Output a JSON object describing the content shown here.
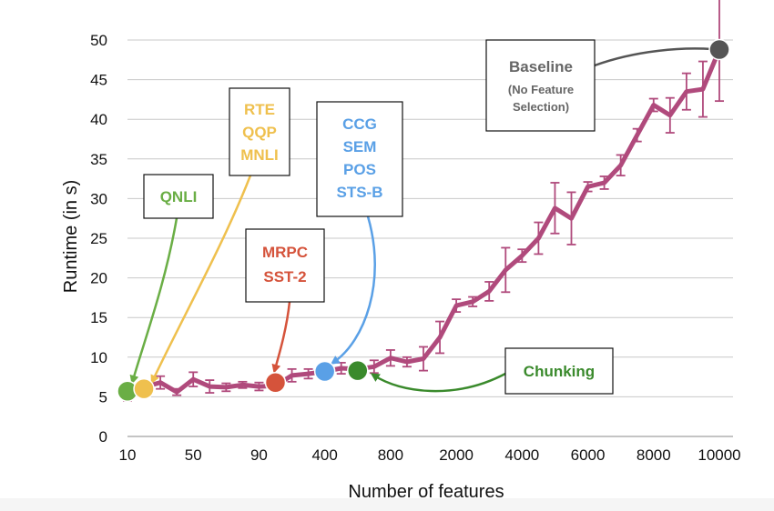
{
  "chart_data": {
    "type": "line",
    "xlabel": "Number of features",
    "ylabel": "Runtime (in s)",
    "ylim": [
      0,
      50
    ],
    "yticks": [
      0,
      5,
      10,
      15,
      20,
      25,
      30,
      35,
      40,
      45,
      50
    ],
    "xtick_labels": [
      "10",
      "50",
      "90",
      "400",
      "800",
      "2000",
      "4000",
      "6000",
      "8000",
      "10000"
    ],
    "grid": true,
    "series": [
      {
        "color": "#b04a7c",
        "x": [
          "10",
          "20",
          "30",
          "40",
          "50",
          "60",
          "70",
          "80",
          "90",
          "100",
          "200",
          "300",
          "400",
          "500",
          "600",
          "700",
          "800",
          "900",
          "1000",
          "1500",
          "2000",
          "2500",
          "3000",
          "3500",
          "4000",
          "4500",
          "5000",
          "5500",
          "6000",
          "6500",
          "7000",
          "7500",
          "8000",
          "8500",
          "9000",
          "9500",
          "10000"
        ],
        "values": [
          5.5,
          6.2,
          6.8,
          5.6,
          7.2,
          6.3,
          6.2,
          6.5,
          6.3,
          6.4,
          7.7,
          7.9,
          8.2,
          8.6,
          8.5,
          8.8,
          9.9,
          9.4,
          9.8,
          12.5,
          16.5,
          17.0,
          18.3,
          21.0,
          22.8,
          25.0,
          28.8,
          27.5,
          31.5,
          32.0,
          34.2,
          38.0,
          41.8,
          40.5,
          43.5,
          43.8,
          48.8
        ],
        "errors": [
          1.0,
          0.6,
          0.8,
          0.4,
          0.9,
          0.8,
          0.5,
          0.4,
          0.5,
          0.5,
          0.8,
          0.6,
          0.6,
          0.7,
          0.6,
          0.8,
          1.0,
          0.6,
          1.5,
          2.0,
          0.8,
          0.6,
          1.2,
          2.8,
          0.8,
          2.0,
          3.2,
          3.3,
          0.6,
          0.8,
          1.3,
          0.8,
          0.8,
          2.2,
          2.3,
          3.5,
          6.5
        ]
      }
    ],
    "markers": [
      {
        "x": "10",
        "y": 5.7,
        "color": "#6aae45"
      },
      {
        "x": "20",
        "y": 6.0,
        "color": "#efc04e"
      },
      {
        "x": "100",
        "y": 6.8,
        "color": "#d5533b"
      },
      {
        "x": "400",
        "y": 8.2,
        "color": "#5aa0e6"
      },
      {
        "x": "600",
        "y": 8.3,
        "color": "#3a8a2c"
      },
      {
        "x": "10000",
        "y": 48.8,
        "color": "#555555"
      }
    ],
    "annotations": [
      {
        "lines": [
          "QNLI"
        ],
        "color": "#6aae45"
      },
      {
        "lines": [
          "RTE",
          "QQP",
          "MNLI"
        ],
        "color": "#efc04e"
      },
      {
        "lines": [
          "MRPC",
          "SST-2"
        ],
        "color": "#d5533b"
      },
      {
        "lines": [
          "CCG",
          "SEM",
          "POS",
          "STS-B"
        ],
        "color": "#5aa0e6"
      },
      {
        "lines": [
          "Chunking"
        ],
        "color": "#3a8a2c"
      },
      {
        "lines": [
          "Baseline",
          "(No Feature",
          "Selection)"
        ],
        "color": "#666666"
      }
    ]
  }
}
